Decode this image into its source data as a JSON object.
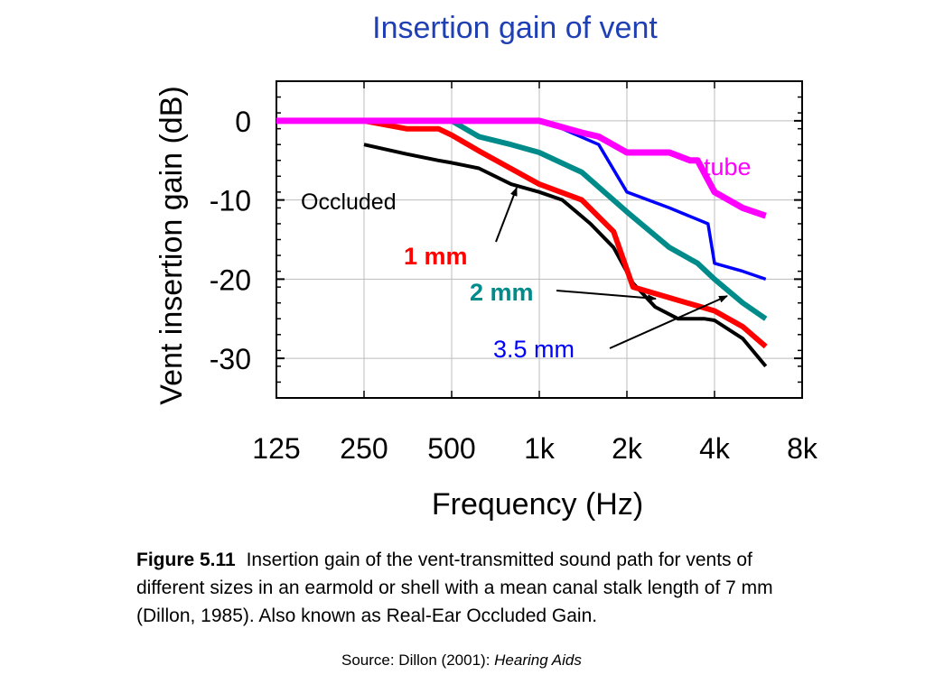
{
  "chart_data": {
    "type": "line",
    "title": "Insertion gain of vent",
    "xlabel": "Frequency (Hz)",
    "ylabel": "Vent insertion gain (dB)",
    "x_scale": "log2",
    "x_ticks": [
      125,
      250,
      500,
      1000,
      2000,
      4000,
      8000
    ],
    "x_tick_labels": [
      "125",
      "250",
      "500",
      "1k",
      "2k",
      "4k",
      "8k"
    ],
    "xlim": [
      125,
      8000
    ],
    "y_ticks": [
      0,
      -10,
      -20,
      -30
    ],
    "y_tick_labels": [
      "0",
      "-10",
      "-20",
      "-30"
    ],
    "ylim": [
      -35,
      5
    ],
    "grid": true,
    "series": [
      {
        "name": "Occluded",
        "color": "#000000",
        "x": [
          250,
          350,
          450,
          500,
          620,
          800,
          1000,
          1200,
          1500,
          1800,
          2100,
          2500,
          3000,
          3250,
          3700,
          4000,
          5000,
          6000
        ],
        "y": [
          -3,
          -4.2,
          -5,
          -5.3,
          -6,
          -8,
          -9,
          -10,
          -13,
          -16,
          -20.5,
          -23.5,
          -25,
          -25,
          -25,
          -25.2,
          -27.5,
          -31
        ]
      },
      {
        "name": "1 mm",
        "color": "#ff0000",
        "x": [
          125,
          250,
          350,
          450,
          500,
          620,
          1000,
          1400,
          1800,
          2100,
          2600,
          4000,
          5000,
          6000
        ],
        "y": [
          0,
          0,
          -1,
          -1,
          -1.8,
          -3.8,
          -8,
          -10,
          -14,
          -21,
          -22,
          -24,
          -26,
          -28.5
        ]
      },
      {
        "name": "2 mm",
        "color": "#008b8b",
        "x": [
          125,
          500,
          620,
          800,
          1000,
          1400,
          2000,
          2800,
          3500,
          4000,
          5000,
          6000
        ],
        "y": [
          0,
          0,
          -2,
          -3,
          -4,
          -6.5,
          -11.5,
          -16,
          -18,
          -20,
          -23,
          -25
        ]
      },
      {
        "name": "3.5 mm",
        "color": "#0000ff",
        "x": [
          125,
          1000,
          1200,
          1600,
          2000,
          2800,
          3800,
          4000,
          5000,
          6000
        ],
        "y": [
          0,
          0,
          -1,
          -3,
          -9,
          -11,
          -13,
          -18,
          -19,
          -20
        ]
      },
      {
        "name": "tube",
        "color": "#ff00ff",
        "x": [
          125,
          1000,
          1400,
          1600,
          2000,
          2800,
          3300,
          3500,
          4000,
          5000,
          6000
        ],
        "y": [
          0,
          0,
          -1.5,
          -2,
          -4,
          -4,
          -5,
          -5,
          -9,
          -11,
          -12
        ]
      }
    ],
    "annotations": [
      {
        "text": "Occluded",
        "color": "#000000",
        "bold": false
      },
      {
        "text": "1 mm",
        "color": "#ff0000",
        "bold": true
      },
      {
        "text": "2 mm",
        "color": "#008b8b",
        "bold": true
      },
      {
        "text": "3.5 mm",
        "color": "#0000ff",
        "bold": false
      },
      {
        "text": "tube",
        "color": "#ff00ff",
        "bold": false
      }
    ]
  },
  "caption": {
    "figure_label": "Figure 5.11",
    "text": "Insertion gain of the vent-transmitted sound path for vents of different sizes in an earmold or shell with a mean canal stalk length of 7 mm (Dillon, 1985).  Also known as Real-Ear Occluded Gain."
  },
  "source": {
    "prefix": "Source:  Dillon (2001): ",
    "title": "Hearing Aids"
  }
}
